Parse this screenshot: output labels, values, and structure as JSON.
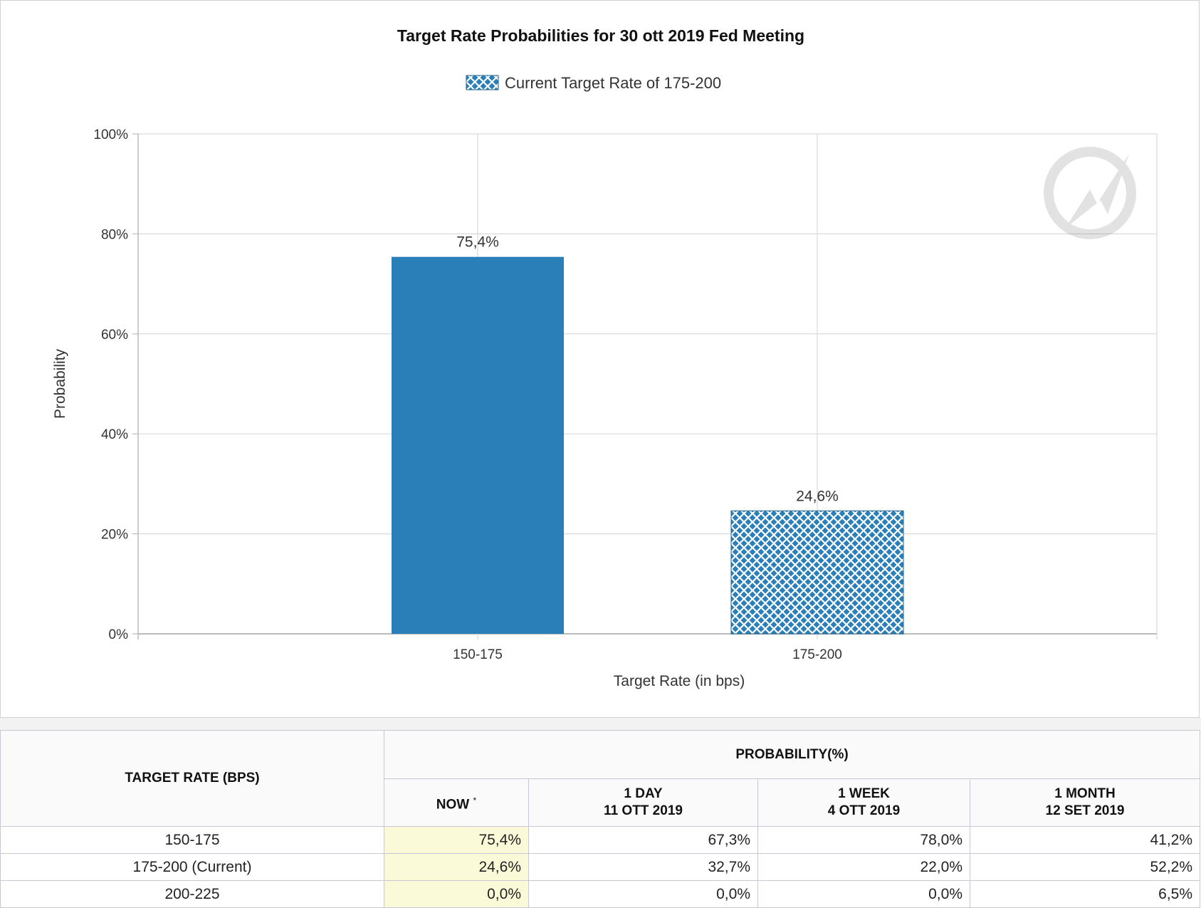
{
  "chart_data": {
    "type": "bar",
    "title": "Target Rate Probabilities for 30 ott 2019 Fed Meeting",
    "legend": {
      "label": "Current Target Rate of 175-200",
      "position": "top-center"
    },
    "categories": [
      "150-175",
      "175-200"
    ],
    "values": [
      75.4,
      24.6
    ],
    "value_labels": [
      "75,4%",
      "24,6%"
    ],
    "current_category": "175-200",
    "xlabel": "Target Rate (in bps)",
    "ylabel": "Probability",
    "ylim": [
      0,
      100
    ],
    "yticks": [
      0,
      20,
      40,
      60,
      80,
      100
    ],
    "ytick_labels": [
      "0%",
      "20%",
      "40%",
      "60%",
      "80%",
      "100%"
    ],
    "grid": true,
    "colors": {
      "bar": "#2b7fb8",
      "hatch_fill": "#ffffff",
      "grid": "#d9d9d9",
      "axis": "#bbbbbb"
    }
  },
  "table": {
    "header_rate": "TARGET RATE (BPS)",
    "header_prob": "PROBABILITY(%)",
    "col_now": "NOW",
    "col_now_mark": "*",
    "col_1day_label": "1 DAY",
    "col_1day_date": "11 OTT 2019",
    "col_1week_label": "1 WEEK",
    "col_1week_date": "4 OTT 2019",
    "col_1month_label": "1 MONTH",
    "col_1month_date": "12 SET 2019",
    "rows": [
      {
        "rate": "150-175",
        "now": "75,4%",
        "day": "67,3%",
        "week": "78,0%",
        "month": "41,2%"
      },
      {
        "rate": "175-200 (Current)",
        "now": "24,6%",
        "day": "32,7%",
        "week": "22,0%",
        "month": "52,2%"
      },
      {
        "rate": "200-225",
        "now": "0,0%",
        "day": "0,0%",
        "week": "0,0%",
        "month": "6,5%"
      }
    ],
    "now_highlight_color": "#fbfad8"
  }
}
